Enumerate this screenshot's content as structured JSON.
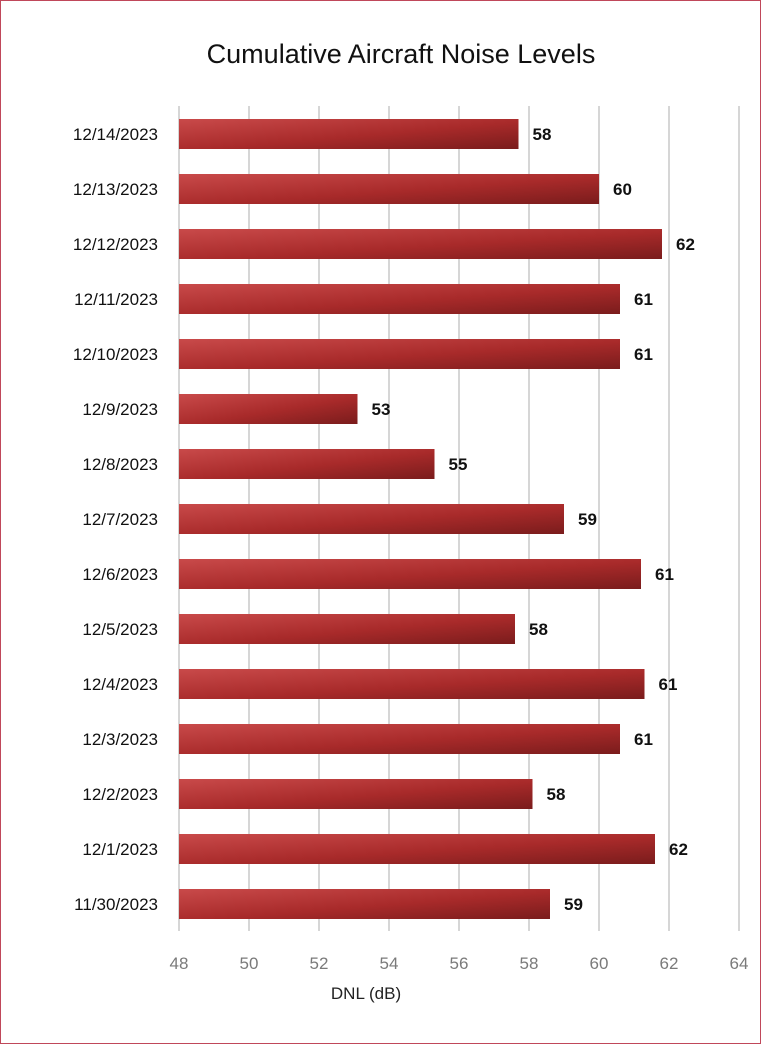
{
  "chart_data": {
    "type": "bar",
    "orientation": "horizontal",
    "title": "Cumulative Aircraft Noise Levels",
    "xlabel": "DNL (dB)",
    "ylabel": "",
    "xlim": [
      48,
      64
    ],
    "xticks": [
      "48",
      "50",
      "52",
      "54",
      "56",
      "58",
      "60",
      "62",
      "64"
    ],
    "grid": "vertical",
    "legend": "none",
    "bar_color": "#a82a2a",
    "categories": [
      "12/14/2023",
      "12/13/2023",
      "12/12/2023",
      "12/11/2023",
      "12/10/2023",
      "12/9/2023",
      "12/8/2023",
      "12/7/2023",
      "12/6/2023",
      "12/5/2023",
      "12/4/2023",
      "12/3/2023",
      "12/2/2023",
      "12/1/2023",
      "11/30/2023"
    ],
    "values": [
      57.7,
      60.0,
      61.8,
      60.6,
      60.6,
      53.1,
      55.3,
      59.0,
      61.2,
      57.6,
      61.3,
      60.6,
      58.1,
      61.6,
      58.6
    ],
    "data_labels": [
      "58",
      "60",
      "62",
      "61",
      "61",
      "53",
      "55",
      "59",
      "61",
      "58",
      "61",
      "61",
      "58",
      "62",
      "59"
    ]
  }
}
